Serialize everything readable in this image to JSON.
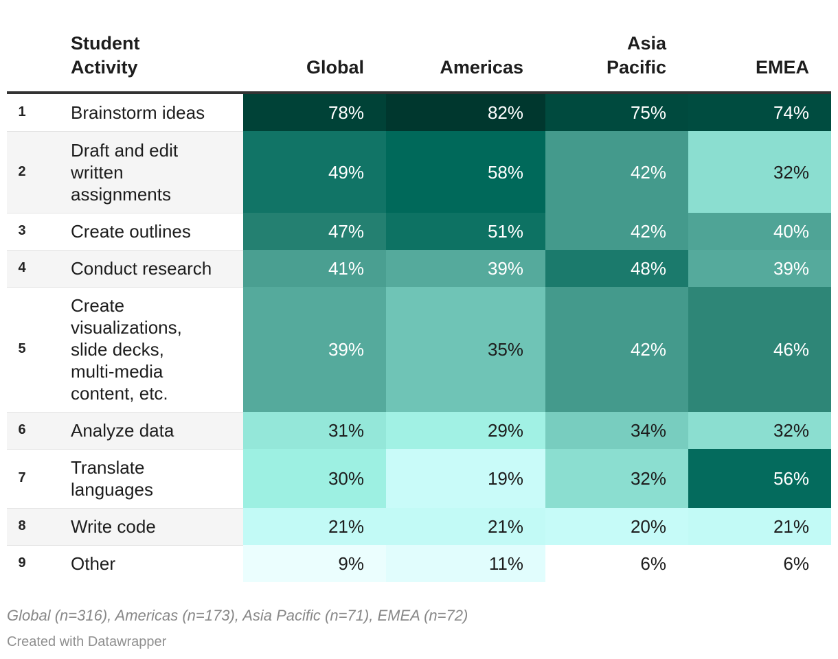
{
  "chart_data": {
    "type": "table",
    "header": {
      "activity_line1": "Student",
      "activity_line2": "Activity",
      "columns": [
        {
          "line1": "",
          "line2": "Global"
        },
        {
          "line1": "",
          "line2": "Americas"
        },
        {
          "line1": "Asia",
          "line2": "Pacific"
        },
        {
          "line1": "",
          "line2": "EMEA"
        }
      ]
    },
    "rows": [
      {
        "rank": "1",
        "activity": [
          "Brainstorm ideas"
        ],
        "values": [
          78,
          82,
          75,
          74
        ]
      },
      {
        "rank": "2",
        "activity": [
          "Draft and edit",
          "written",
          "assignments"
        ],
        "values": [
          49,
          58,
          42,
          32
        ]
      },
      {
        "rank": "3",
        "activity": [
          "Create outlines"
        ],
        "values": [
          47,
          51,
          42,
          40
        ]
      },
      {
        "rank": "4",
        "activity": [
          "Conduct research"
        ],
        "values": [
          41,
          39,
          48,
          39
        ]
      },
      {
        "rank": "5",
        "activity": [
          "Create",
          "visualizations,",
          "slide decks,",
          "multi-media",
          "content, etc."
        ],
        "values": [
          39,
          35,
          42,
          46
        ]
      },
      {
        "rank": "6",
        "activity": [
          "Analyze data"
        ],
        "values": [
          31,
          29,
          34,
          32
        ]
      },
      {
        "rank": "7",
        "activity": [
          "Translate",
          "languages"
        ],
        "values": [
          30,
          19,
          32,
          56
        ]
      },
      {
        "rank": "8",
        "activity": [
          "Write code"
        ],
        "values": [
          21,
          21,
          20,
          21
        ]
      },
      {
        "rank": "9",
        "activity": [
          "Other"
        ],
        "values": [
          9,
          11,
          6,
          6
        ]
      }
    ],
    "value_suffix": "%",
    "color_scale": {
      "stops": [
        {
          "value": 6,
          "color": "#ffffff"
        },
        {
          "value": 10,
          "color": "#e4fdfd"
        },
        {
          "value": 20,
          "color": "#c6fbf8"
        },
        {
          "value": 30,
          "color": "#9df0e2"
        },
        {
          "value": 35,
          "color": "#6fc4b6"
        },
        {
          "value": 40,
          "color": "#4fa496"
        },
        {
          "value": 46,
          "color": "#2e8677"
        },
        {
          "value": 49,
          "color": "#117466"
        },
        {
          "value": 58,
          "color": "#00695a"
        },
        {
          "value": 75,
          "color": "#004a3e"
        },
        {
          "value": 82,
          "color": "#00372e"
        }
      ],
      "dark_text_color": "#1d1d1d",
      "light_text_color": "#ffffff"
    }
  },
  "footer": {
    "note": "Global (n=316), Americas (n=173), Asia Pacific (n=71), EMEA (n=72)",
    "credit": "Created with Datawrapper"
  }
}
